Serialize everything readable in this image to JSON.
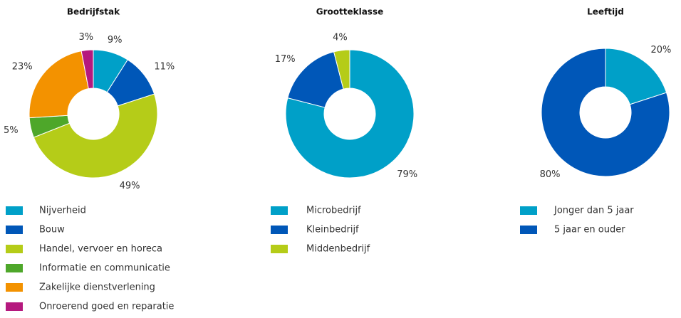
{
  "chart_data": [
    {
      "type": "pie",
      "title": "Bedrijfstak",
      "categories": [
        "Nijverheid",
        "Bouw",
        "Handel, vervoer en horeca",
        "Informatie en communicatie",
        "Zakelijke dienstverlening",
        "Onroerend goed en reparatie"
      ],
      "values": [
        9,
        11,
        49,
        5,
        23,
        3
      ],
      "value_labels": [
        "9%",
        "11%",
        "49%",
        "5%",
        "23%",
        "3%"
      ],
      "colors": [
        "#00a0c8",
        "#0057b8",
        "#b5cc18",
        "#4ea72a",
        "#f39200",
        "#b5197e"
      ]
    },
    {
      "type": "pie",
      "title": "Grootteklasse",
      "categories": [
        "Microbedrijf",
        "Kleinbedrijf",
        "Middenbedrijf"
      ],
      "values": [
        79,
        17,
        4
      ],
      "value_labels": [
        "79%",
        "17%",
        "4%"
      ],
      "colors": [
        "#00a0c8",
        "#0057b8",
        "#b5cc18"
      ]
    },
    {
      "type": "pie",
      "title": "Leeftijd",
      "categories": [
        "Jonger dan 5 jaar",
        "5 jaar en ouder"
      ],
      "values": [
        20,
        80
      ],
      "value_labels": [
        "20%",
        "80%"
      ],
      "colors": [
        "#00a0c8",
        "#0057b8"
      ]
    }
  ]
}
